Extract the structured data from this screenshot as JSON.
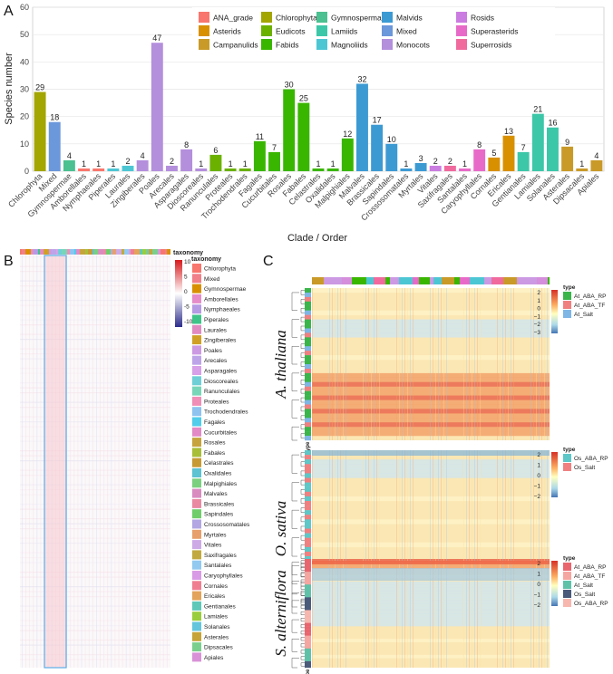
{
  "panels": {
    "a": "A",
    "b": "B",
    "c": "C"
  },
  "chart_data": [
    {
      "type": "bar",
      "title": "",
      "xlabel": "Clade / Order",
      "ylabel": "Species number",
      "ylim": [
        0,
        60
      ],
      "yticks": [
        0,
        10,
        20,
        30,
        40,
        50,
        60
      ],
      "categories": [
        "Chlorophyta",
        "Mixed",
        "Gymnospermae",
        "Amborellales",
        "Nymphaeales",
        "Piperales",
        "Laurales",
        "Zingiberales",
        "Poales",
        "Arecales",
        "Asparagales",
        "Dioscoreales",
        "Ranunculales",
        "Proteales",
        "Trochodendrales",
        "Fagales",
        "Cucurbitales",
        "Rosales",
        "Fabales",
        "Celastrales",
        "Oxalidales",
        "Malpighiales",
        "Malvales",
        "Brassicales",
        "Sapindales",
        "Crossosomatales",
        "Myrtales",
        "Vitales",
        "Saxifragales",
        "Santalales",
        "Caryophyllales",
        "Cornales",
        "Ericales",
        "Gentianales",
        "Lamiales",
        "Solanales",
        "Asterales",
        "Dipsacales",
        "Apiales"
      ],
      "values": [
        29,
        18,
        4,
        1,
        1,
        1,
        2,
        4,
        47,
        2,
        8,
        1,
        6,
        1,
        1,
        11,
        7,
        30,
        25,
        1,
        1,
        12,
        32,
        17,
        10,
        1,
        3,
        2,
        2,
        1,
        8,
        5,
        13,
        7,
        21,
        16,
        9,
        1,
        4
      ],
      "groups": [
        "Chlorophyta",
        "Mixed",
        "Gymnospermae",
        "ANA_grade",
        "ANA_grade",
        "Magnoliids",
        "Magnoliids",
        "Monocots",
        "Monocots",
        "Monocots",
        "Monocots",
        "Monocots",
        "Eudicots",
        "Eudicots",
        "Eudicots",
        "Fabids",
        "Fabids",
        "Fabids",
        "Fabids",
        "Fabids",
        "Fabids",
        "Fabids",
        "Malvids",
        "Malvids",
        "Malvids",
        "Malvids",
        "Malvids",
        "Rosids",
        "Superrosids",
        "Superasterids",
        "Superasterids",
        "Asterids",
        "Asterids",
        "Lamiids",
        "Lamiids",
        "Lamiids",
        "Campanulids",
        "Campanulids",
        "Campanulids"
      ],
      "legend": [
        {
          "label": "ANA_grade",
          "color": "#F8766D"
        },
        {
          "label": "Asterids",
          "color": "#D89000"
        },
        {
          "label": "Campanulids",
          "color": "#C99A28"
        },
        {
          "label": "Chlorophyta",
          "color": "#A3A500"
        },
        {
          "label": "Eudicots",
          "color": "#6BB100"
        },
        {
          "label": "Fabids",
          "color": "#39B600"
        },
        {
          "label": "Gymnospermae",
          "color": "#4BC090"
        },
        {
          "label": "Lamiids",
          "color": "#3CC7A8"
        },
        {
          "label": "Magnoliids",
          "color": "#4DC6D4"
        },
        {
          "label": "Malvids",
          "color": "#3C9AD3"
        },
        {
          "label": "Mixed",
          "color": "#6B97DB"
        },
        {
          "label": "Monocots",
          "color": "#B48FDC"
        },
        {
          "label": "Rosids",
          "color": "#CB7CE0"
        },
        {
          "label": "Superasterids",
          "color": "#E86AC8"
        },
        {
          "label": "Superrosids",
          "color": "#F06A9E"
        }
      ]
    }
  ],
  "panel_b": {
    "legend_title": "taxonomy",
    "colorbar_ticks": [
      "10",
      "5",
      "0",
      "-5",
      "-10"
    ],
    "taxa": [
      {
        "label": "Chlorophyta",
        "color": "#F8766D"
      },
      {
        "label": "Mixed",
        "color": "#F0808A"
      },
      {
        "label": "Gymnospermae",
        "color": "#D89000"
      },
      {
        "label": "Amborellales",
        "color": "#E58CC9"
      },
      {
        "label": "Nymphaeales",
        "color": "#B59BE3"
      },
      {
        "label": "Piperales",
        "color": "#3EC489"
      },
      {
        "label": "Laurales",
        "color": "#E18AC1"
      },
      {
        "label": "Zingiberales",
        "color": "#D0A026"
      },
      {
        "label": "Poales",
        "color": "#CC99E3"
      },
      {
        "label": "Arecales",
        "color": "#BDA4E8"
      },
      {
        "label": "Asparagales",
        "color": "#D7A0E8"
      },
      {
        "label": "Dioscoreales",
        "color": "#6FCFD6"
      },
      {
        "label": "Ranunculales",
        "color": "#78D6B8"
      },
      {
        "label": "Proteales",
        "color": "#F08EB7"
      },
      {
        "label": "Trochodendrales",
        "color": "#8EC3F0"
      },
      {
        "label": "Fagales",
        "color": "#4FCDEB"
      },
      {
        "label": "Cucurbitales",
        "color": "#E289C6"
      },
      {
        "label": "Rosales",
        "color": "#C7A33E"
      },
      {
        "label": "Fabales",
        "color": "#A9BE37"
      },
      {
        "label": "Celastrales",
        "color": "#C79A34"
      },
      {
        "label": "Oxalidales",
        "color": "#5DC2D2"
      },
      {
        "label": "Malpighiales",
        "color": "#7BD07F"
      },
      {
        "label": "Malvales",
        "color": "#D98BC0"
      },
      {
        "label": "Brassicales",
        "color": "#E98AA2"
      },
      {
        "label": "Sapindales",
        "color": "#6FCE6A"
      },
      {
        "label": "Crossosomatales",
        "color": "#B3A6E3"
      },
      {
        "label": "Myrtales",
        "color": "#E7A06C"
      },
      {
        "label": "Vitales",
        "color": "#CDA9E6"
      },
      {
        "label": "Saxifragales",
        "color": "#C2A93F"
      },
      {
        "label": "Santalales",
        "color": "#92C9F0"
      },
      {
        "label": "Caryophyllales",
        "color": "#D99BE5"
      },
      {
        "label": "Cornales",
        "color": "#F07E91"
      },
      {
        "label": "Ericales",
        "color": "#E3A35A"
      },
      {
        "label": "Gentianales",
        "color": "#5DC8B8"
      },
      {
        "label": "Lamiales",
        "color": "#9ACD3C"
      },
      {
        "label": "Solanales",
        "color": "#63C6DC"
      },
      {
        "label": "Asterales",
        "color": "#C6A437"
      },
      {
        "label": "Dipsacales",
        "color": "#7BCF8E"
      },
      {
        "label": "Apiales",
        "color": "#D992D8"
      }
    ]
  },
  "panel_c": {
    "heatmaps": [
      {
        "species": "A. thaliana",
        "type_label": "type",
        "legend_title": "type",
        "ticks": [
          "2",
          "1",
          "0",
          "−1",
          "−2",
          "−3"
        ],
        "types": [
          {
            "label": "At_ABA_RP",
            "color": "#39B54A"
          },
          {
            "label": "At_ABA_TF",
            "color": "#F08080"
          },
          {
            "label": "At_Salt",
            "color": "#7EB6E6"
          }
        ]
      },
      {
        "species": "O. sativa",
        "type_label": "type",
        "legend_title": "type",
        "ticks": [
          "2",
          "1",
          "0",
          "−1",
          "−2"
        ],
        "types": [
          {
            "label": "Os_ABA_RP",
            "color": "#5EC7C7"
          },
          {
            "label": "Os_Salt",
            "color": "#F08080"
          }
        ]
      },
      {
        "species": "S. alterniflora",
        "type_label": "type",
        "legend_title": "type",
        "ticks": [
          "2",
          "1",
          "0",
          "−1",
          "−2"
        ],
        "types": [
          {
            "label": "At_ABA_RP",
            "color": "#E9656E"
          },
          {
            "label": "At_ABA_TF",
            "color": "#F6A6A0"
          },
          {
            "label": "At_Salt",
            "color": "#5FC2A8"
          },
          {
            "label": "Os_Salt",
            "color": "#4A5A7A"
          },
          {
            "label": "Os_ABA_RP",
            "color": "#F7B7AE"
          }
        ]
      }
    ]
  }
}
